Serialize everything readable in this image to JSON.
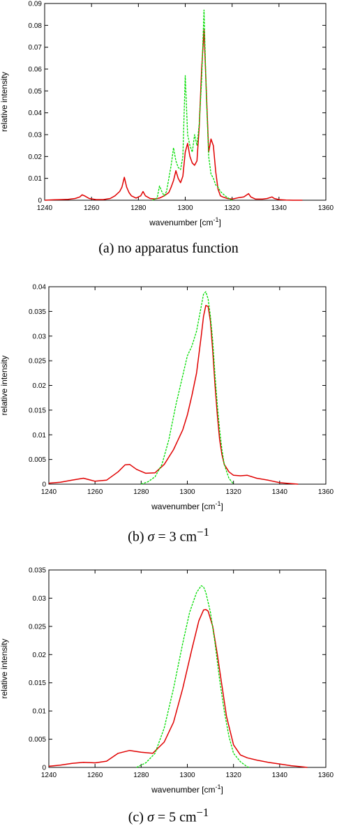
{
  "chart_data": [
    {
      "type": "line",
      "xlabel": "wavenumber [cm",
      "xlabel_sup": "-1",
      "xlabel_end": "]",
      "ylabel": "relative intensity",
      "xlim": [
        1240,
        1360
      ],
      "ylim": [
        0,
        0.09
      ],
      "xticks": [
        "1240",
        "1260",
        "1280",
        "1300",
        "1320",
        "1340",
        "1360"
      ],
      "yticks": [
        "0",
        "0.01",
        "0.02",
        "0.03",
        "0.04",
        "0.05",
        "0.06",
        "0.07",
        "0.08",
        "0.09"
      ],
      "colors": {
        "red": "#e00000",
        "green": "#00dd00"
      },
      "caption": {
        "prefix": "(a)",
        "text": "no apparatus function"
      },
      "series": [
        {
          "color": "red",
          "style": "solid",
          "x": [
            1240,
            1244,
            1247,
            1250,
            1253,
            1255,
            1256,
            1257,
            1259,
            1262,
            1265,
            1268,
            1270,
            1272,
            1273,
            1274,
            1275,
            1276,
            1277,
            1279,
            1281,
            1282,
            1283,
            1285,
            1287,
            1289,
            1291,
            1293,
            1294,
            1295,
            1296,
            1297,
            1298,
            1299,
            1300,
            1301,
            1302,
            1303,
            1304,
            1305,
            1306,
            1307,
            1308,
            1309,
            1310,
            1311,
            1312,
            1313,
            1314,
            1315,
            1316,
            1318,
            1320,
            1323,
            1325,
            1327,
            1328,
            1330,
            1333,
            1335,
            1337,
            1338,
            1340,
            1343,
            1346,
            1350
          ],
          "y": [
            0,
            0.0002,
            0.0003,
            0.0004,
            0.0008,
            0.0015,
            0.0025,
            0.002,
            0.0008,
            0.0003,
            0.0003,
            0.0008,
            0.002,
            0.004,
            0.006,
            0.0105,
            0.006,
            0.0035,
            0.002,
            0.001,
            0.002,
            0.004,
            0.002,
            0.0008,
            0.0006,
            0.001,
            0.002,
            0.0035,
            0.006,
            0.009,
            0.0135,
            0.01,
            0.008,
            0.011,
            0.022,
            0.026,
            0.02,
            0.017,
            0.016,
            0.018,
            0.034,
            0.06,
            0.078,
            0.05,
            0.022,
            0.028,
            0.025,
            0.013,
            0.005,
            0.002,
            0.0015,
            0.0008,
            0.0005,
            0.0012,
            0.0015,
            0.003,
            0.0015,
            0.0005,
            0.0005,
            0.0008,
            0.0015,
            0.0008,
            0.0003,
            0.0001,
            0,
            0
          ]
        },
        {
          "color": "green",
          "style": "dashed",
          "x": [
            1286,
            1288,
            1289,
            1290,
            1291,
            1292,
            1293,
            1294,
            1295,
            1296,
            1297,
            1298,
            1299,
            1300,
            1301,
            1302,
            1303,
            1304,
            1305,
            1306,
            1307,
            1308,
            1309,
            1310,
            1311,
            1312,
            1313,
            1314,
            1315,
            1317,
            1319,
            1320
          ],
          "y": [
            0,
            0.001,
            0.0065,
            0.004,
            0.002,
            0.004,
            0.01,
            0.016,
            0.024,
            0.018,
            0.015,
            0.014,
            0.02,
            0.057,
            0.03,
            0.025,
            0.022,
            0.03,
            0.025,
            0.035,
            0.055,
            0.087,
            0.048,
            0.02,
            0.012,
            0.01,
            0.007,
            0.006,
            0.004,
            0.002,
            0.0005,
            0
          ]
        }
      ]
    },
    {
      "type": "line",
      "xlabel": "wavenumber [cm",
      "xlabel_sup": "-1",
      "xlabel_end": "]",
      "ylabel": "relative intensity",
      "xlim": [
        1240,
        1360
      ],
      "ylim": [
        0,
        0.04
      ],
      "xticks": [
        "1240",
        "1260",
        "1280",
        "1300",
        "1320",
        "1340",
        "1360"
      ],
      "yticks": [
        "0",
        "0.005",
        "0.01",
        "0.015",
        "0.02",
        "0.025",
        "0.03",
        "0.035",
        "0.04"
      ],
      "colors": {
        "red": "#e00000",
        "green": "#00dd00"
      },
      "caption": {
        "prefix": "(b)",
        "symbol": "σ",
        "text": " = 3 cm",
        "sup": "−1"
      },
      "series": [
        {
          "color": "red",
          "style": "solid",
          "x": [
            1240,
            1245,
            1250,
            1255,
            1260,
            1265,
            1270,
            1273,
            1275,
            1278,
            1282,
            1286,
            1290,
            1294,
            1298,
            1300,
            1302,
            1304,
            1306,
            1307,
            1308,
            1309,
            1310,
            1311,
            1312,
            1313,
            1314,
            1315,
            1316,
            1318,
            1320,
            1323,
            1326,
            1330,
            1335,
            1340,
            1345,
            1348
          ],
          "y": [
            0.0002,
            0.0004,
            0.0008,
            0.0012,
            0.0006,
            0.0008,
            0.0025,
            0.0039,
            0.004,
            0.003,
            0.0022,
            0.0023,
            0.004,
            0.007,
            0.011,
            0.014,
            0.018,
            0.0225,
            0.03,
            0.034,
            0.0362,
            0.036,
            0.033,
            0.027,
            0.02,
            0.014,
            0.009,
            0.006,
            0.004,
            0.0025,
            0.0018,
            0.0017,
            0.0018,
            0.0012,
            0.0008,
            0.0003,
            0.0001,
            0
          ]
        },
        {
          "color": "green",
          "style": "dashed",
          "x": [
            1280,
            1283,
            1286,
            1289,
            1292,
            1295,
            1298,
            1300,
            1302,
            1304,
            1306,
            1307,
            1308,
            1309,
            1310,
            1311,
            1312,
            1313,
            1314,
            1315,
            1316,
            1318,
            1320
          ],
          "y": [
            0,
            0.0005,
            0.0015,
            0.004,
            0.009,
            0.016,
            0.022,
            0.026,
            0.028,
            0.031,
            0.036,
            0.0385,
            0.039,
            0.0375,
            0.034,
            0.029,
            0.022,
            0.016,
            0.011,
            0.007,
            0.004,
            0.0012,
            0
          ]
        }
      ]
    },
    {
      "type": "line",
      "xlabel": "wavenumber [cm",
      "xlabel_sup": "-1",
      "xlabel_end": "]",
      "ylabel": "relative intensity",
      "xlim": [
        1240,
        1360
      ],
      "ylim": [
        0,
        0.035
      ],
      "xticks": [
        "1240",
        "1260",
        "1280",
        "1300",
        "1320",
        "1340",
        "1360"
      ],
      "yticks": [
        "0",
        "0.005",
        "0.01",
        "0.015",
        "0.02",
        "0.025",
        "0.03",
        "0.035"
      ],
      "colors": {
        "red": "#e00000",
        "green": "#00dd00"
      },
      "caption": {
        "prefix": "(c)",
        "symbol": "σ",
        "text": " = 5 cm",
        "sup": "−1"
      },
      "series": [
        {
          "color": "red",
          "style": "solid",
          "x": [
            1240,
            1245,
            1250,
            1255,
            1260,
            1265,
            1270,
            1275,
            1280,
            1285,
            1290,
            1294,
            1298,
            1302,
            1305,
            1307,
            1308,
            1309,
            1311,
            1313,
            1315,
            1317,
            1320,
            1323,
            1326,
            1330,
            1335,
            1340,
            1345,
            1350,
            1352
          ],
          "y": [
            0.0002,
            0.0004,
            0.0007,
            0.0009,
            0.0008,
            0.0011,
            0.0025,
            0.003,
            0.0027,
            0.0025,
            0.0045,
            0.008,
            0.014,
            0.021,
            0.026,
            0.0279,
            0.028,
            0.0277,
            0.025,
            0.02,
            0.0145,
            0.009,
            0.004,
            0.0022,
            0.0017,
            0.0013,
            0.0009,
            0.0006,
            0.0003,
            0.0001,
            0
          ]
        },
        {
          "color": "green",
          "style": "dashed",
          "x": [
            1278,
            1282,
            1286,
            1290,
            1294,
            1298,
            1301,
            1304,
            1306,
            1307,
            1308,
            1310,
            1312,
            1314,
            1316,
            1318,
            1320,
            1323,
            1326,
            1327
          ],
          "y": [
            0,
            0.0008,
            0.0025,
            0.007,
            0.014,
            0.022,
            0.0275,
            0.031,
            0.0322,
            0.032,
            0.031,
            0.0275,
            0.022,
            0.0155,
            0.01,
            0.0055,
            0.0025,
            0.001,
            0.0001,
            0
          ]
        }
      ]
    }
  ]
}
